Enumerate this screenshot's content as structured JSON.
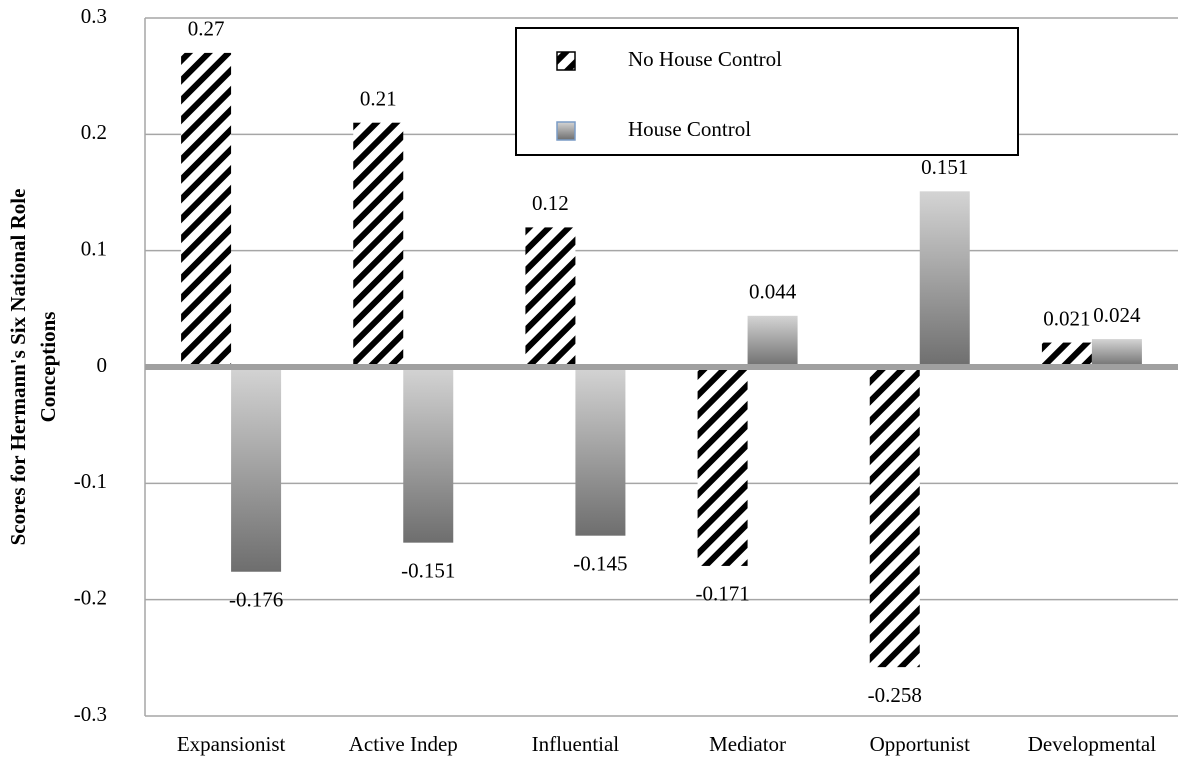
{
  "chart_data": {
    "type": "bar",
    "ylabel": [
      "Scores for Hermann's Six National Role",
      "Conceptions"
    ],
    "categories": [
      "Expansionist",
      "Active Indep",
      "Influential",
      "Mediator",
      "Opportunist",
      "Developmental"
    ],
    "series": [
      {
        "name": "No House Control",
        "color": "#000000",
        "style": "hatch",
        "values": [
          0.27,
          0.21,
          0.12,
          -0.171,
          -0.258,
          0.021
        ]
      },
      {
        "name": "House Control",
        "color": "#8c8c8c",
        "style": "gradient",
        "values": [
          -0.176,
          -0.151,
          -0.145,
          0.044,
          0.151,
          0.024
        ]
      }
    ],
    "ylim": [
      -0.3,
      0.3
    ],
    "yticks": [
      -0.3,
      -0.2,
      -0.1,
      0,
      0.1,
      0.2,
      0.3
    ],
    "grid": true,
    "legend": "top"
  }
}
